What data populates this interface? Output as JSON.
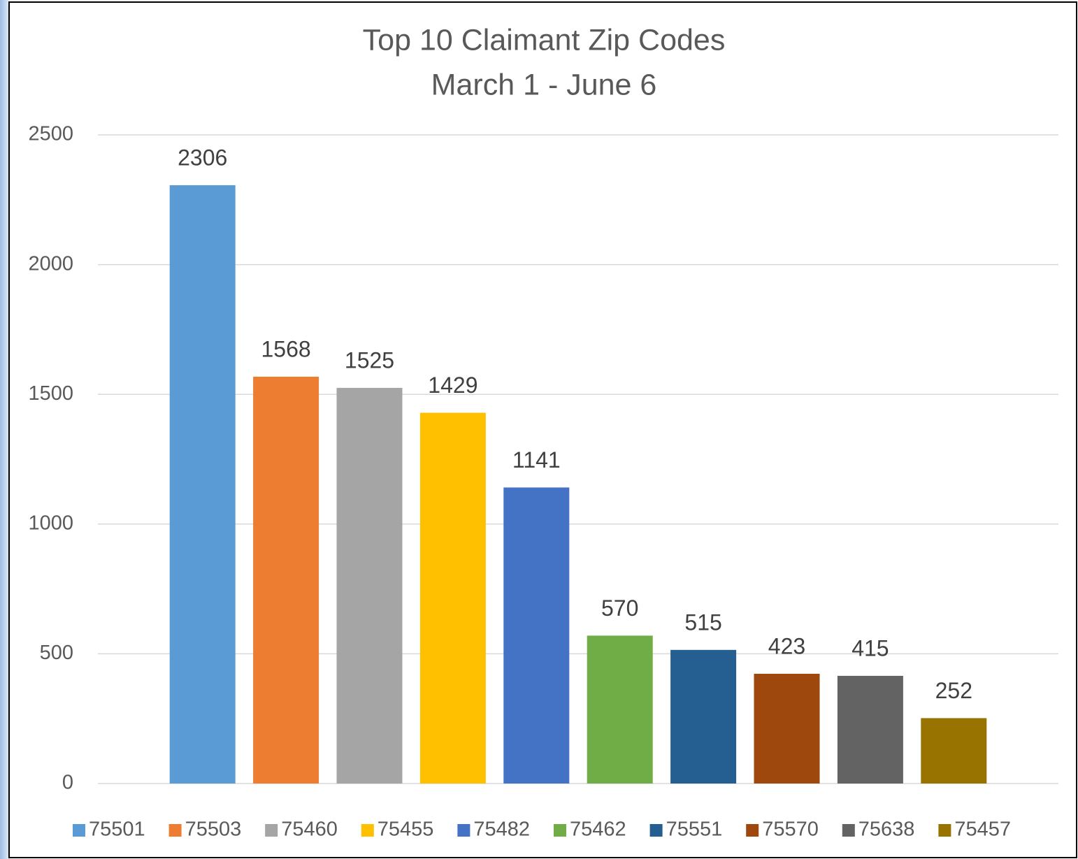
{
  "chart_data": {
    "type": "bar",
    "title": "Top 10 Claimant Zip Codes",
    "subtitle": "March 1 - June 6",
    "categories": [
      null
    ],
    "series": [
      {
        "name": "75501",
        "color": "#5b9bd5",
        "values": [
          2306
        ]
      },
      {
        "name": "75503",
        "color": "#ed7d31",
        "values": [
          1568
        ]
      },
      {
        "name": "75460",
        "color": "#a5a5a5",
        "values": [
          1525
        ]
      },
      {
        "name": "75455",
        "color": "#ffc000",
        "values": [
          1429
        ]
      },
      {
        "name": "75482",
        "color": "#4472c4",
        "values": [
          1141
        ]
      },
      {
        "name": "75462",
        "color": "#70ad47",
        "values": [
          570
        ]
      },
      {
        "name": "75551",
        "color": "#255e91",
        "values": [
          515
        ]
      },
      {
        "name": "75570",
        "color": "#9e480e",
        "values": [
          423
        ]
      },
      {
        "name": "75638",
        "color": "#636363",
        "values": [
          415
        ]
      },
      {
        "name": "75457",
        "color": "#997300",
        "values": [
          252
        ]
      }
    ],
    "ylim": [
      0,
      2500
    ],
    "yticks": [
      0,
      500,
      1000,
      1500,
      2000,
      2500
    ],
    "grid": true,
    "legend": "bottom"
  }
}
